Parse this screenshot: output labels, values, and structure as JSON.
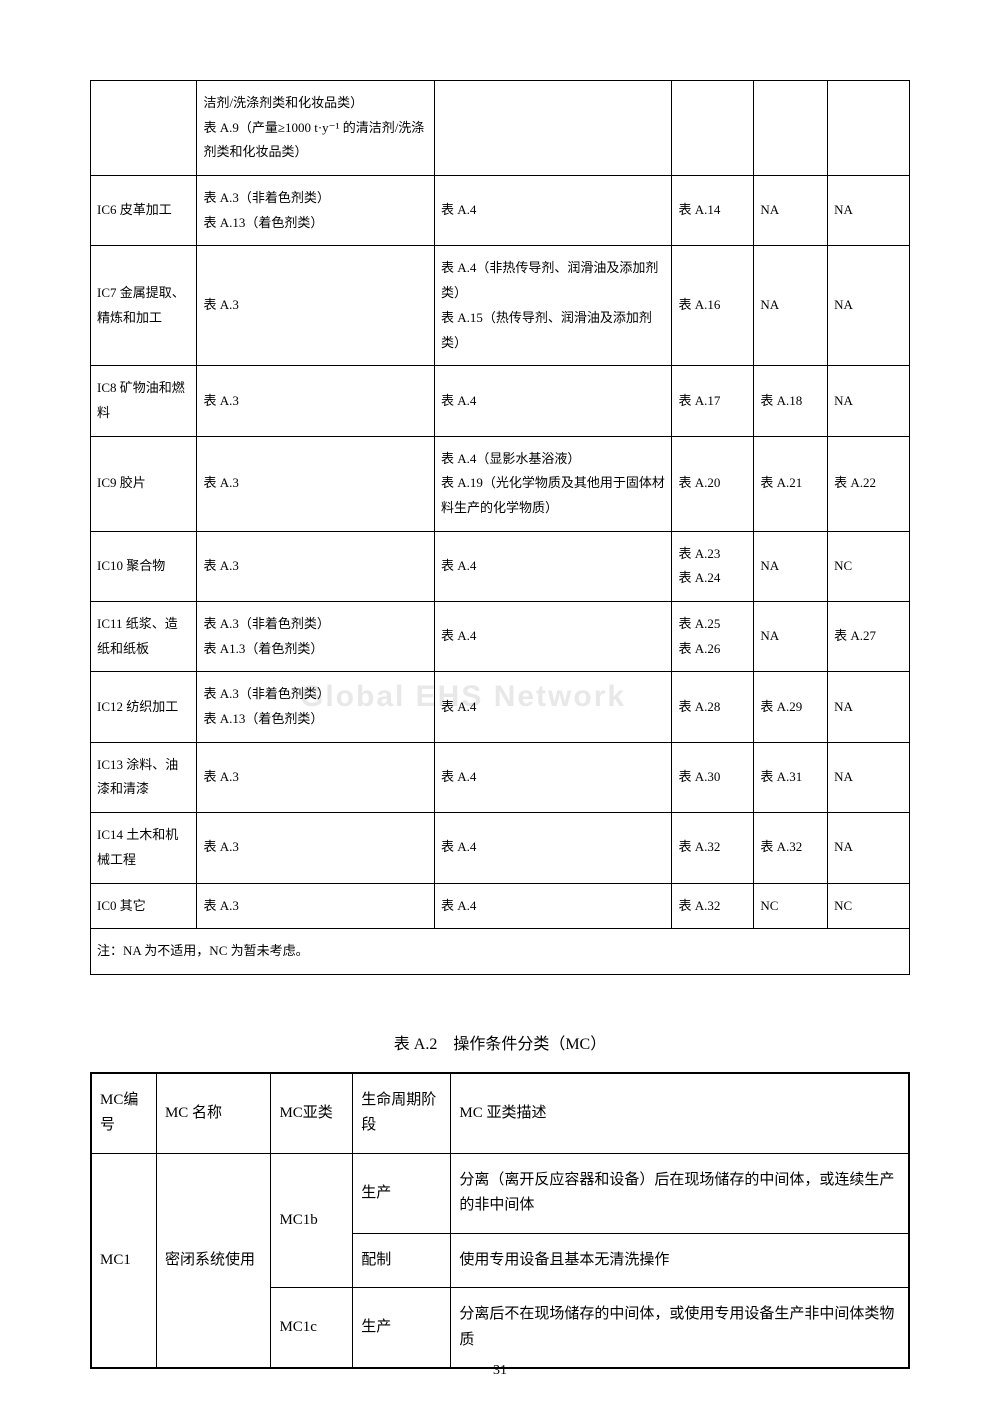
{
  "table1": {
    "rows": [
      {
        "c1": "",
        "c2": "洁剂/洗涤剂类和化妆品类）\n表 A.9（产量≥1000 t·y⁻¹ 的清洁剂/洗涤剂类和化妆品类）",
        "c3": "",
        "c4": "",
        "c5": "",
        "c6": ""
      },
      {
        "c1": "IC6 皮革加工",
        "c2": "表 A.3（非着色剂类）\n表 A.13（着色剂类）",
        "c3": "表 A.4",
        "c4": "表 A.14",
        "c5": "NA",
        "c6": "NA"
      },
      {
        "c1": "IC7 金属提取、精炼和加工",
        "c2": "表 A.3",
        "c3": "表 A.4（非热传导剂、润滑油及添加剂类）\n表 A.15（热传导剂、润滑油及添加剂类）",
        "c4": "表 A.16",
        "c5": "NA",
        "c6": "NA"
      },
      {
        "c1": "IC8 矿物油和燃料",
        "c2": "表 A.3",
        "c3": "表 A.4",
        "c4": "表 A.17",
        "c5": "表 A.18",
        "c6": "NA"
      },
      {
        "c1": "IC9 胶片",
        "c2": "表 A.3",
        "c3": "表 A.4（显影水基浴液）\n表 A.19（光化学物质及其他用于固体材料生产的化学物质）",
        "c4": "表 A.20",
        "c5": "表 A.21",
        "c6": "表 A.22"
      },
      {
        "c1": "IC10 聚合物",
        "c2": "表 A.3",
        "c3": "表 A.4",
        "c4": "表 A.23\n表 A.24",
        "c5": "NA",
        "c6": "NC"
      },
      {
        "c1": "IC11 纸浆、造纸和纸板",
        "c2": "表 A.3（非着色剂类）\n表 A1.3（着色剂类）",
        "c3": "表 A.4",
        "c4": "表 A.25\n表 A.26",
        "c5": "NA",
        "c6": "表 A.27"
      },
      {
        "c1": "IC12 纺织加工",
        "c2": "表 A.3（非着色剂类）\n表 A.13（着色剂类）",
        "c3": "表 A.4",
        "c4": "表 A.28",
        "c5": "表 A.29",
        "c6": "NA"
      },
      {
        "c1": "IC13 涂料、油漆和清漆",
        "c2": "表 A.3",
        "c3": "表 A.4",
        "c4": "表 A.30",
        "c5": "表 A.31",
        "c6": "NA"
      },
      {
        "c1": "IC14 土木和机械工程",
        "c2": "表 A.3",
        "c3": "表 A.4",
        "c4": "表 A.32",
        "c5": "表 A.32",
        "c6": "NA"
      },
      {
        "c1": "IC0 其它",
        "c2": "表 A.3",
        "c3": "表 A.4",
        "c4": "表 A.32",
        "c5": "NC",
        "c6": "NC"
      }
    ],
    "note": "注：NA 为不适用，NC 为暂未考虑。"
  },
  "table2_title": "表 A.2　操作条件分类（MC）",
  "table2": {
    "headers": {
      "h1": "MC编号",
      "h2": "MC 名称",
      "h3": "MC亚类",
      "h4": "生命周期阶段",
      "h5": "MC 亚类描述"
    },
    "rows": [
      {
        "c1": "MC1",
        "c2": "密闭系统使用",
        "c3": "MC1b",
        "c4": "生产",
        "c5": "分离（离开反应容器和设备）后在现场储存的中间体，或连续生产的非中间体"
      },
      {
        "c4b": "配制",
        "c5b": "使用专用设备且基本无清洗操作"
      },
      {
        "c3c": "MC1c",
        "c4c": "生产",
        "c5c": "分离后不在现场储存的中间体，或使用专用设备生产非中间体类物质"
      }
    ]
  },
  "watermark": "Global EHS Network",
  "page_number": "31"
}
